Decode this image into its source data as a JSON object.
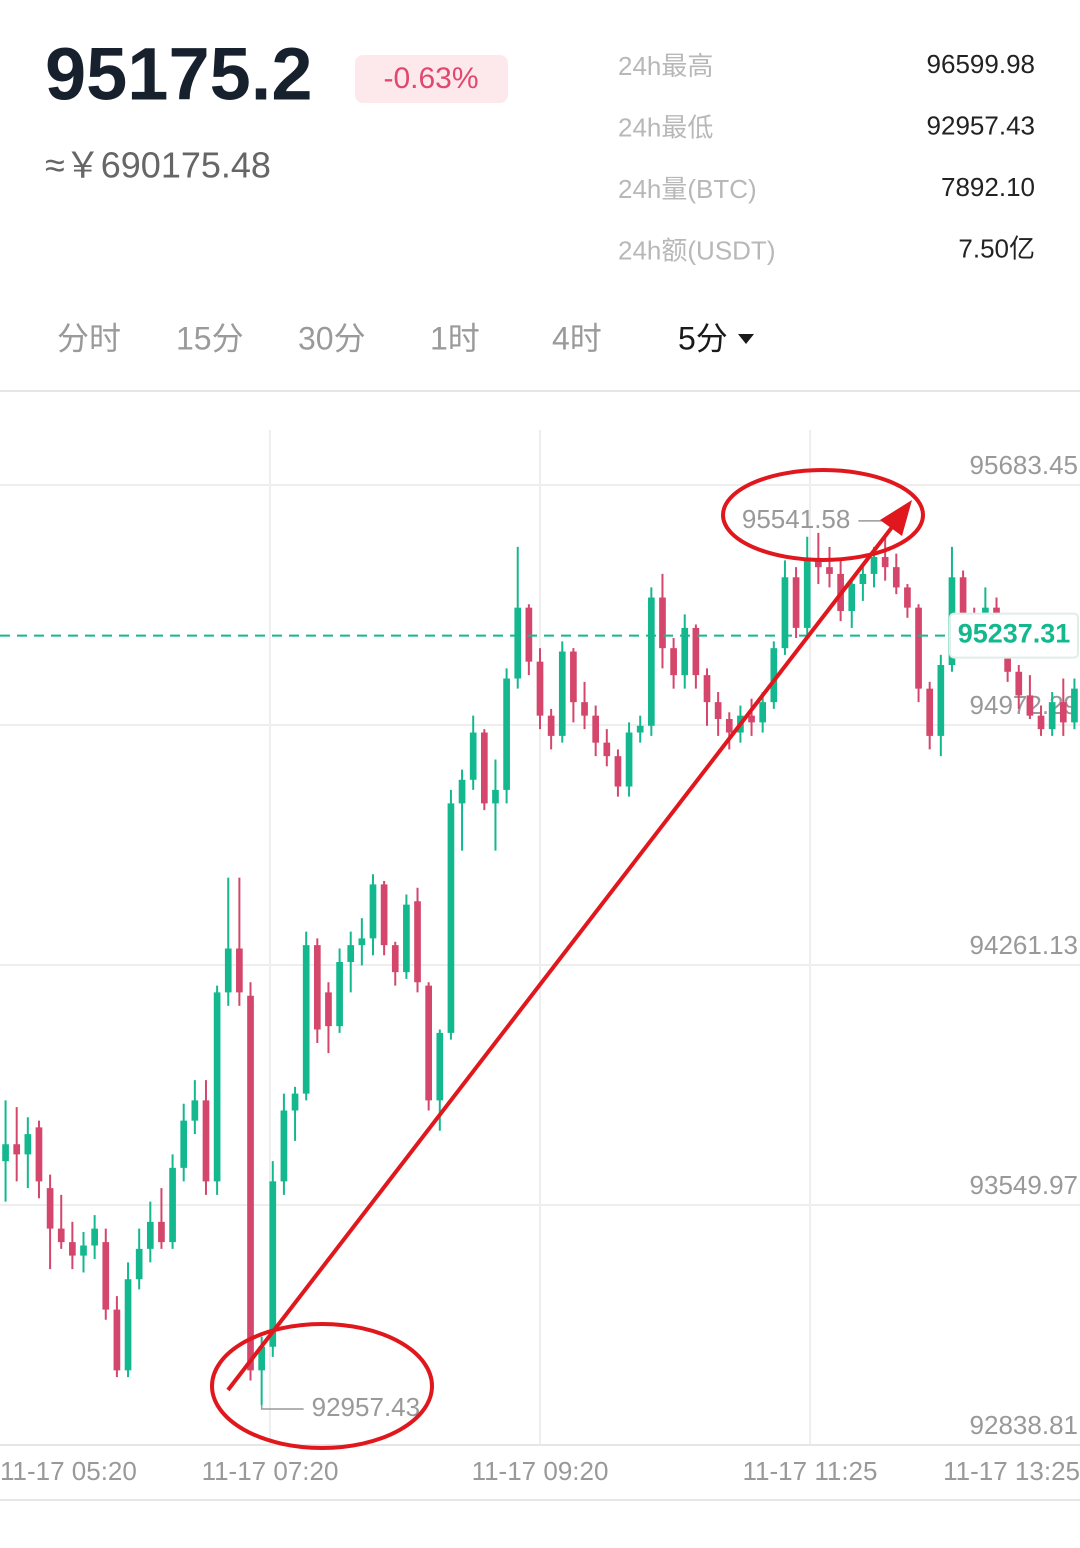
{
  "header": {
    "price": "95175.2",
    "change": "-0.63%",
    "cny": "≈￥690175.48"
  },
  "stats": [
    {
      "label": "24h最高",
      "value": "96599.98"
    },
    {
      "label": "24h最低",
      "value": "92957.43"
    },
    {
      "label": "24h量(BTC)",
      "value": "7892.10"
    },
    {
      "label": "24h额(USDT)",
      "value": "7.50亿"
    }
  ],
  "tabs": [
    "分时",
    "15分",
    "30分",
    "1时",
    "4时",
    "5分"
  ],
  "selected_tab": 5,
  "chart_data": {
    "type": "candlestick",
    "up_color": "#14b88e",
    "down_color": "#d4466c",
    "ylim": [
      92838.81,
      95846.43
    ],
    "yticks": [
      95683.45,
      94972.29,
      94261.13,
      93549.97,
      92838.81
    ],
    "grid": true,
    "xticks": [
      "11-17 05:20",
      "11-17 07:20",
      "11-17 09:20",
      "11-17 11:25",
      "11-17 13:25"
    ],
    "last_price": 95237.31,
    "high_label": 95541.58,
    "low_label": 92957.43,
    "open": [
      93680,
      93730,
      93700,
      93780,
      93600,
      93480,
      93440,
      93400,
      93430,
      93440,
      93240,
      93060,
      93330,
      93420,
      93500,
      93440,
      93660,
      93800,
      93860,
      93620,
      94180,
      94310,
      94170,
      93060,
      93130,
      93620,
      93830,
      93880,
      94320,
      94180,
      94080,
      94270,
      94320,
      94340,
      94500,
      94320,
      94240,
      94450,
      94200,
      93860,
      94060,
      94740,
      94810,
      94950,
      94740,
      94780,
      95110,
      95320,
      95160,
      95000,
      94940,
      95190,
      95040,
      95000,
      94920,
      94880,
      94790,
      94950,
      94970,
      95350,
      95200,
      95120,
      95260,
      95120,
      95040,
      94990,
      94950,
      95000,
      94980,
      95040,
      95200,
      95410,
      95260,
      95460,
      95440,
      95420,
      95310,
      95390,
      95420,
      95470,
      95440,
      95380,
      95320,
      95080,
      94940,
      95150,
      95410,
      95280,
      95260,
      95320,
      95220,
      95130,
      95060,
      95000,
      94960,
      95040,
      94980
    ],
    "high": [
      93860,
      93840,
      93810,
      93800,
      93640,
      93580,
      93500,
      93470,
      93520,
      93480,
      93280,
      93380,
      93480,
      93560,
      93600,
      93700,
      93850,
      93920,
      93920,
      94200,
      94520,
      94520,
      94210,
      93160,
      93680,
      93880,
      93900,
      94360,
      94340,
      94210,
      94310,
      94360,
      94400,
      94530,
      94510,
      94330,
      94470,
      94490,
      94210,
      94070,
      94780,
      94840,
      95000,
      94960,
      94870,
      95140,
      95500,
      95330,
      95200,
      95020,
      95220,
      95200,
      95100,
      95030,
      94960,
      94900,
      94980,
      95000,
      95380,
      95420,
      95230,
      95300,
      95270,
      95140,
      95070,
      95010,
      95030,
      95050,
      95070,
      95220,
      95460,
      95440,
      95530,
      95541.58,
      95500,
      95460,
      95400,
      95440,
      95500,
      95530,
      95480,
      95390,
      95330,
      95100,
      95180,
      95500,
      95430,
      95320,
      95380,
      95350,
      95240,
      95150,
      95120,
      95030,
      95070,
      95110,
      95110
    ],
    "low": [
      93560,
      93620,
      93600,
      93570,
      93360,
      93420,
      93360,
      93350,
      93390,
      93210,
      93040,
      93040,
      93300,
      93380,
      93420,
      93420,
      93620,
      93760,
      93580,
      93580,
      94140,
      94140,
      93030,
      92957.43,
      93100,
      93580,
      93740,
      93860,
      94030,
      94000,
      94060,
      94180,
      94260,
      94290,
      94290,
      94200,
      94220,
      94180,
      93830,
      93770,
      94040,
      94600,
      94780,
      94720,
      94600,
      94740,
      95080,
      95120,
      94960,
      94900,
      94920,
      94980,
      94960,
      94880,
      94850,
      94760,
      94760,
      94920,
      94940,
      95140,
      95080,
      95080,
      95080,
      94970,
      94940,
      94900,
      94920,
      94940,
      94950,
      95020,
      95180,
      95230,
      95240,
      95390,
      95380,
      95280,
      95260,
      95340,
      95380,
      95400,
      95360,
      95290,
      95040,
      94900,
      94880,
      95130,
      95250,
      95220,
      95240,
      95180,
      95100,
      95020,
      94990,
      94940,
      94940,
      94940,
      94960
    ],
    "close": [
      93730,
      93700,
      93760,
      93620,
      93480,
      93440,
      93400,
      93430,
      93480,
      93240,
      93060,
      93330,
      93420,
      93500,
      93440,
      93660,
      93800,
      93860,
      93620,
      94180,
      94310,
      94180,
      93060,
      93130,
      93620,
      93830,
      93880,
      94320,
      94070,
      94080,
      94270,
      94320,
      94340,
      94500,
      94320,
      94240,
      94440,
      94210,
      93860,
      94060,
      94740,
      94810,
      94950,
      94740,
      94780,
      95110,
      95320,
      95160,
      95000,
      94940,
      95190,
      95040,
      95000,
      94920,
      94880,
      94790,
      94950,
      94970,
      95350,
      95200,
      95120,
      95260,
      95120,
      95040,
      94990,
      94950,
      95000,
      94980,
      95040,
      95200,
      95410,
      95260,
      95460,
      95440,
      95420,
      95310,
      95390,
      95420,
      95470,
      95440,
      95380,
      95320,
      95080,
      94940,
      95150,
      95410,
      95280,
      95260,
      95320,
      95220,
      95130,
      95060,
      95000,
      94960,
      95040,
      94980,
      95080
    ]
  }
}
